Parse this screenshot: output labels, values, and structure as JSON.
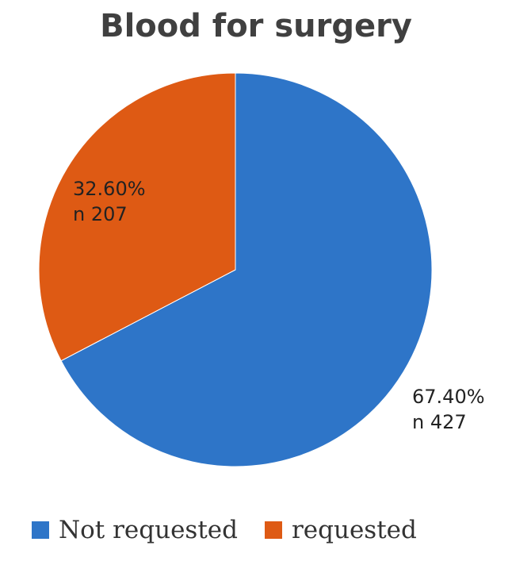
{
  "chart_data": {
    "type": "pie",
    "title": "Blood for surgery",
    "slices": [
      {
        "name": "Not requested",
        "value": 427,
        "percent_label": "67.40%",
        "count_label": "n 427",
        "color": "#2e75c8"
      },
      {
        "name": "requested",
        "value": 207,
        "percent_label": "32.60%",
        "count_label": "n 207",
        "color": "#de5a14"
      }
    ],
    "legend_position": "bottom"
  }
}
